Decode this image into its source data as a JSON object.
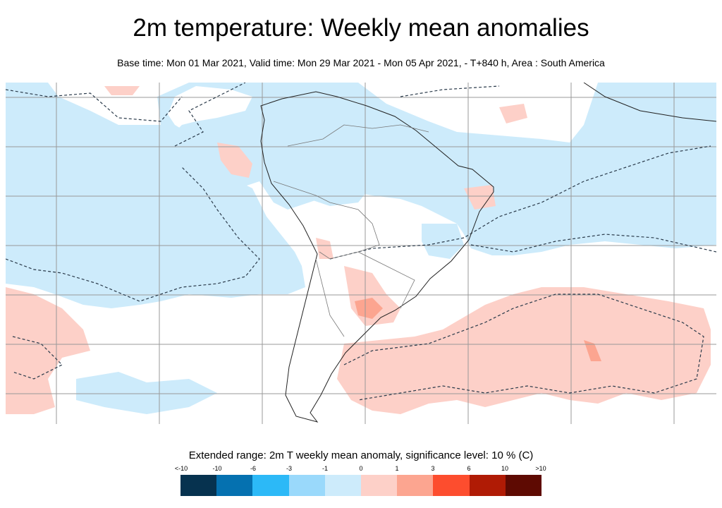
{
  "title": "2m temperature: Weekly mean anomalies",
  "subtitle": "Base time: Mon 01 Mar 2021, Valid time: Mon 29 Mar 2021 - Mon 05 Apr 2021, - T+840 h, Area : South America",
  "legend": {
    "title": "Extended range: 2m T weekly mean anomaly, significance level: 10 % (C)",
    "labels": [
      "<-10",
      "-10",
      "-6",
      "-3",
      "-1",
      "0",
      "1",
      "3",
      "6",
      "10",
      ">10"
    ],
    "colors": [
      "#06324f",
      "#0571b0",
      "#2cb9f7",
      "#9ad9fb",
      "#cdebfb",
      "#fdd0c8",
      "#fca590",
      "#fd4d2e",
      "#b01b05",
      "#5e0a02"
    ]
  }
}
